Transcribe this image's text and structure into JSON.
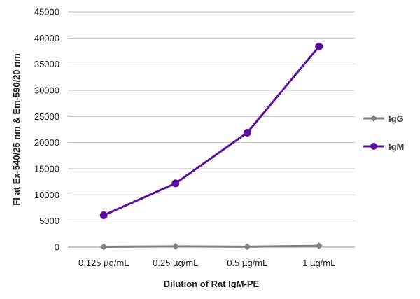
{
  "chart_data": {
    "type": "line",
    "xlabel": "Dilution of Rat IgM-PE",
    "ylabel": "FI at Ex-540/25 nm & Em-590/20 nm",
    "categories": [
      "0.125 µg/mL",
      "0.25 µg/mL",
      "0.5 µg/mL",
      "1 µg/mL"
    ],
    "ylim": [
      0,
      45000
    ],
    "yticks": [
      0,
      5000,
      10000,
      15000,
      20000,
      25000,
      30000,
      35000,
      40000,
      45000
    ],
    "grid": true,
    "legend_position": "right",
    "series": [
      {
        "name": "IgG",
        "color": "#808080",
        "marker": "diamond",
        "values": [
          60,
          150,
          80,
          250
        ]
      },
      {
        "name": "IgM",
        "color": "#5a0fa0",
        "marker": "circle",
        "values": [
          6100,
          12200,
          21900,
          38400
        ]
      }
    ]
  }
}
